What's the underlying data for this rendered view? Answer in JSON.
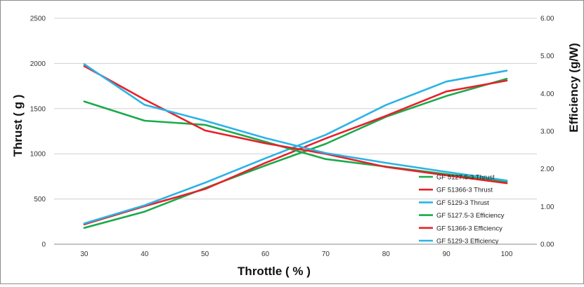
{
  "chart_data": {
    "type": "line",
    "title": "",
    "xlabel": "Throttle ( % )",
    "ylabel_left": "Thrust ( g )",
    "ylabel_right": "Efficiency (g/W)",
    "x": [
      30,
      40,
      50,
      60,
      70,
      80,
      90,
      100
    ],
    "x_ticks": [
      "30",
      "40",
      "50",
      "60",
      "70",
      "80",
      "90",
      "100"
    ],
    "ylim_left": [
      0,
      2500
    ],
    "yticks_left": [
      "0",
      "500",
      "1000",
      "1500",
      "2000",
      "2500"
    ],
    "ylim_right": [
      0,
      6
    ],
    "yticks_right": [
      "0.00",
      "1.00",
      "2.00",
      "3.00",
      "4.00",
      "5.00",
      "6.00"
    ],
    "grid": "horizontal",
    "legend_position": "bottom-right",
    "series": [
      {
        "name": "GF 5127.5-3 Thrust",
        "axis": "left",
        "color": "#1aaa4a",
        "values": [
          180,
          360,
          620,
          870,
          1110,
          1410,
          1640,
          1830
        ]
      },
      {
        "name": "GF 51366-3 Thrust",
        "axis": "left",
        "color": "#e8202a",
        "values": [
          220,
          420,
          610,
          900,
          1170,
          1420,
          1690,
          1810
        ]
      },
      {
        "name": "GF 5129-3 Thrust",
        "axis": "left",
        "color": "#2ab3e6",
        "values": [
          230,
          430,
          680,
          950,
          1210,
          1540,
          1800,
          1920
        ]
      },
      {
        "name": "GF 5127.5-3 Efficiency",
        "axis": "right",
        "color": "#1aaa4a",
        "values": [
          3.79,
          3.28,
          3.17,
          2.72,
          2.26,
          2.06,
          1.86,
          1.66
        ]
      },
      {
        "name": "GF 51366-3 Efficiency",
        "axis": "right",
        "color": "#e8202a",
        "values": [
          4.73,
          3.84,
          3.02,
          2.68,
          2.4,
          2.05,
          1.83,
          1.62
        ]
      },
      {
        "name": "GF 5129-3 Efficiency",
        "axis": "right",
        "color": "#2ab3e6",
        "values": [
          4.78,
          3.7,
          3.28,
          2.82,
          2.42,
          2.16,
          1.92,
          1.69
        ]
      }
    ]
  }
}
